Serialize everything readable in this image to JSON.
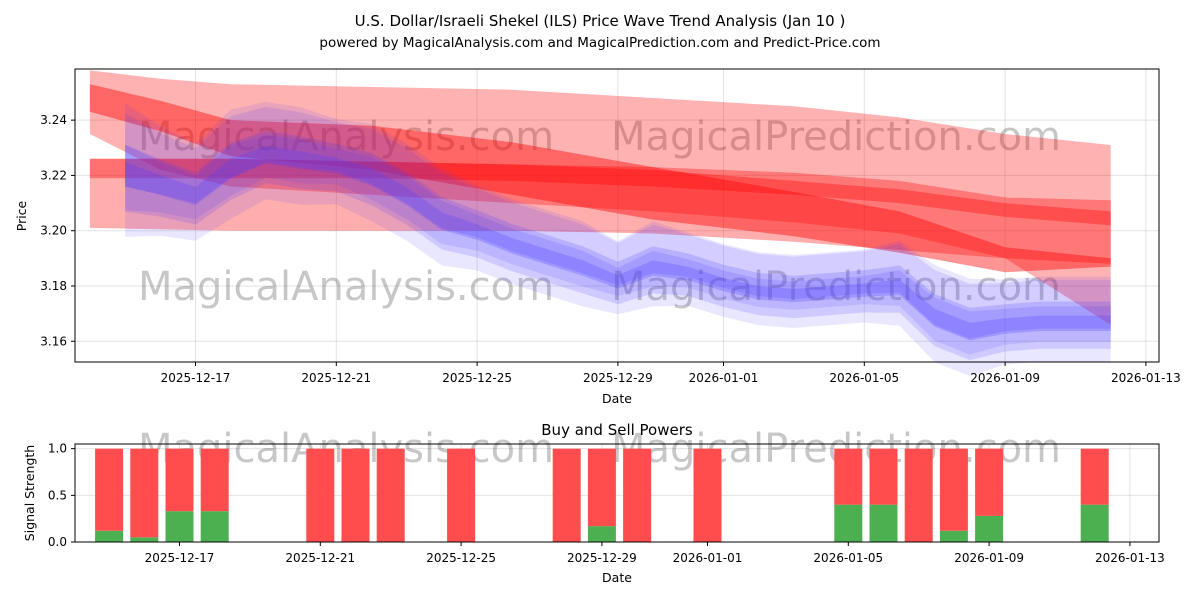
{
  "chart_data": [
    {
      "type": "area",
      "title": "U.S. Dollar/Israeli Shekel (ILS) Price Wave Trend Analysis (Jan 10 )",
      "subtitle": "powered by MagicalAnalysis.com and MagicalPrediction.com and Predict-Price.com",
      "xlabel": "Date",
      "ylabel": "Price",
      "x_ticks": [
        "2025-12-17",
        "2025-12-21",
        "2025-12-25",
        "2025-12-29",
        "2026-01-01",
        "2026-01-05",
        "2026-01-09",
        "2026-01-13"
      ],
      "y_ticks": [
        "3.16",
        "3.18",
        "3.20",
        "3.22",
        "3.24"
      ],
      "ylim": [
        3.1525,
        3.2585
      ],
      "grid": true,
      "watermarks": [
        "MagicalAnalysis.com",
        "MagicalPrediction.com"
      ],
      "series": [
        {
          "name": "prediction band (wide, upper)",
          "color": "#ff0000",
          "x": [
            "2025-12-14",
            "2025-12-16",
            "2025-12-18",
            "2025-12-22",
            "2025-12-26",
            "2025-12-30",
            "2026-01-03",
            "2026-01-06",
            "2026-01-09",
            "2026-01-12"
          ],
          "upper": [
            3.258,
            3.255,
            3.253,
            3.252,
            3.251,
            3.248,
            3.245,
            3.241,
            3.235,
            3.231
          ],
          "lower": [
            3.235,
            3.222,
            3.216,
            3.213,
            3.21,
            3.207,
            3.203,
            3.199,
            3.19,
            3.166
          ]
        },
        {
          "name": "prediction band (strong)",
          "color": "#ff0000",
          "x": [
            "2025-12-14",
            "2025-12-16",
            "2025-12-18",
            "2025-12-22",
            "2025-12-26",
            "2025-12-30",
            "2026-01-03",
            "2026-01-06",
            "2026-01-09",
            "2026-01-12"
          ],
          "upper": [
            3.253,
            3.247,
            3.24,
            3.238,
            3.232,
            3.223,
            3.214,
            3.207,
            3.194,
            3.19
          ],
          "lower": [
            3.243,
            3.236,
            3.227,
            3.222,
            3.213,
            3.204,
            3.198,
            3.192,
            3.185,
            3.187
          ]
        },
        {
          "name": "prediction band (flat)",
          "color": "#ff0000",
          "x": [
            "2025-12-14",
            "2025-12-18",
            "2025-12-22",
            "2025-12-26",
            "2025-12-30",
            "2026-01-03",
            "2026-01-06",
            "2026-01-09",
            "2026-01-12"
          ],
          "upper": [
            3.226,
            3.226,
            3.225,
            3.224,
            3.223,
            3.221,
            3.218,
            3.212,
            3.211
          ],
          "lower": [
            3.201,
            3.2,
            3.2,
            3.2,
            3.199,
            3.196,
            3.193,
            3.19,
            3.188
          ]
        },
        {
          "name": "prediction band (low)",
          "color": "#ff0000",
          "x": [
            "2025-12-14",
            "2025-12-18",
            "2025-12-22",
            "2025-12-26",
            "2025-12-30",
            "2026-01-03",
            "2026-01-06",
            "2026-01-09",
            "2026-01-12"
          ],
          "upper": [
            3.226,
            3.226,
            3.225,
            3.224,
            3.222,
            3.218,
            3.215,
            3.21,
            3.207
          ],
          "lower": [
            3.219,
            3.219,
            3.219,
            3.218,
            3.216,
            3.213,
            3.21,
            3.205,
            3.202
          ]
        },
        {
          "name": "price wave",
          "color": "#4b3cff",
          "x": [
            "2025-12-15",
            "2025-12-16",
            "2025-12-17",
            "2025-12-18",
            "2025-12-19",
            "2025-12-20",
            "2025-12-21",
            "2025-12-22",
            "2025-12-23",
            "2025-12-24",
            "2025-12-25",
            "2025-12-26",
            "2025-12-27",
            "2025-12-28",
            "2025-12-29",
            "2025-12-30",
            "2025-12-31",
            "2026-01-01",
            "2026-01-02",
            "2026-01-03",
            "2026-01-04",
            "2026-01-05",
            "2026-01-06",
            "2026-01-07",
            "2026-01-08",
            "2026-01-09",
            "2026-01-10",
            "2026-01-11",
            "2026-01-12"
          ],
          "values": [
            3.222,
            3.218,
            3.214,
            3.224,
            3.229,
            3.227,
            3.225,
            3.221,
            3.214,
            3.205,
            3.201,
            3.196,
            3.192,
            3.188,
            3.183,
            3.188,
            3.186,
            3.182,
            3.179,
            3.178,
            3.179,
            3.18,
            3.181,
            3.17,
            3.165,
            3.167,
            3.168,
            3.168,
            3.168
          ],
          "spread": [
            0.011,
            0.009,
            0.008,
            0.009,
            0.008,
            0.008,
            0.007,
            0.008,
            0.008,
            0.008,
            0.007,
            0.007,
            0.007,
            0.007,
            0.006,
            0.007,
            0.006,
            0.006,
            0.006,
            0.006,
            0.006,
            0.006,
            0.007,
            0.008,
            0.008,
            0.007,
            0.007,
            0.007,
            0.007
          ]
        }
      ]
    },
    {
      "type": "bar",
      "title": "Buy and Sell Powers",
      "xlabel": "Date",
      "ylabel": "Signal Strength",
      "x_ticks": [
        "2025-12-17",
        "2025-12-21",
        "2025-12-25",
        "2025-12-29",
        "2026-01-01",
        "2026-01-05",
        "2026-01-09",
        "2026-01-13"
      ],
      "y_ticks": [
        "0.0",
        "0.5",
        "1.0"
      ],
      "ylim": [
        0,
        1.05
      ],
      "grid": true,
      "colors": {
        "buy": "#4caf50",
        "sell": "#ff4c4c"
      },
      "watermarks": [
        "MagicalAnalysis.com",
        "MagicalPrediction.com"
      ],
      "dates": [
        "2025-12-15",
        "2025-12-16",
        "2025-12-17",
        "2025-12-18",
        "2025-12-21",
        "2025-12-22",
        "2025-12-23",
        "2025-12-25",
        "2025-12-28",
        "2025-12-29",
        "2025-12-30",
        "2026-01-01",
        "2026-01-05",
        "2026-01-06",
        "2026-01-07",
        "2026-01-08",
        "2026-01-09",
        "2026-01-12"
      ],
      "buy": [
        0.12,
        0.05,
        0.33,
        0.33,
        0,
        0,
        0,
        0,
        0,
        0.17,
        0,
        0,
        0.4,
        0.4,
        0,
        0.12,
        0.28,
        0.4
      ],
      "sell": [
        0.88,
        0.95,
        0.67,
        0.67,
        1,
        1,
        1,
        1,
        1,
        0.83,
        1,
        1,
        0.6,
        0.6,
        1,
        0.88,
        0.72,
        0.6
      ]
    }
  ]
}
